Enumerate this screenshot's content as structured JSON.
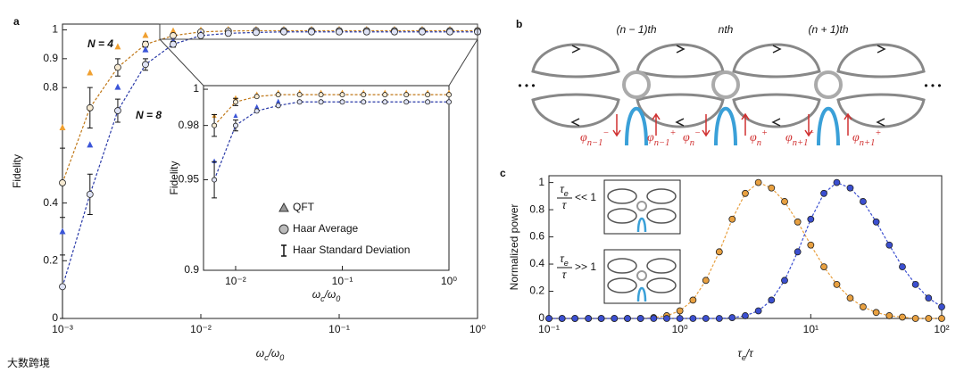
{
  "chart_data": [
    {
      "type": "line",
      "label": "a",
      "xscale": "log",
      "ylabel": "Fidelity",
      "xlabel": [
        "ω",
        {
          "sub": "c"
        },
        "/ω",
        {
          "sub": "0"
        }
      ],
      "xlim": [
        0.001,
        1
      ],
      "ylim": [
        0,
        1.02
      ],
      "xticks": [
        {
          "value": 0.001,
          "label": "10⁻³"
        },
        {
          "value": 0.01,
          "label": "10⁻²"
        },
        {
          "value": 0.1,
          "label": "10⁻¹"
        },
        {
          "value": 1,
          "label": "10⁰"
        }
      ],
      "yticks": [
        0,
        0.2,
        0.4,
        0.8,
        0.9,
        1
      ],
      "annotations": [
        {
          "text": "N = 4",
          "color": "#c8834e"
        },
        {
          "text": "N = 8",
          "color": "#2b2ba0"
        }
      ],
      "x": [
        0.001,
        0.00158,
        0.00251,
        0.00398,
        0.00631,
        0.01,
        0.0158,
        0.0251,
        0.0398,
        0.0631,
        0.1,
        0.158,
        0.251,
        0.398,
        0.631,
        1
      ],
      "series": [
        {
          "color": "#f0a030",
          "marker": "triangle",
          "values": [
            0.66,
            0.85,
            0.94,
            0.98,
            0.995,
            0.998,
            1,
            1,
            1,
            1,
            1,
            1,
            1,
            1,
            1,
            1
          ]
        },
        {
          "color": "#c07818",
          "marker": "circle",
          "marker_fill": "#f6ead2",
          "line": "dashed",
          "values": [
            0.47,
            0.73,
            0.87,
            0.95,
            0.98,
            0.993,
            0.996,
            0.997,
            0.997,
            0.997,
            0.997,
            0.997,
            0.997,
            0.997,
            0.997,
            0.997
          ],
          "errors": [
            0.12,
            0.07,
            0.03,
            0.01,
            0,
            0,
            0,
            0,
            0,
            0,
            0,
            0,
            0,
            0,
            0,
            0
          ]
        },
        {
          "color": "#3b55d8",
          "marker": "triangle",
          "values": [
            0.3,
            0.6,
            0.8,
            0.93,
            0.96,
            0.985,
            0.99,
            0.993,
            0.993,
            0.993,
            0.993,
            0.993,
            0.993,
            0.993,
            0.993,
            0.993
          ]
        },
        {
          "color": "#2a3aa8",
          "marker": "circle",
          "marker_fill": "#dfe3f5",
          "line": "dashed",
          "values": [
            0.11,
            0.43,
            0.72,
            0.88,
            0.95,
            0.98,
            0.988,
            0.991,
            0.993,
            0.993,
            0.993,
            0.993,
            0.993,
            0.993,
            0.993,
            0.993
          ],
          "errors": [
            0.11,
            0.07,
            0.04,
            0.02,
            0.01,
            0,
            0,
            0,
            0,
            0,
            0,
            0,
            0,
            0,
            0,
            0
          ]
        }
      ]
    },
    {
      "type": "line",
      "xscale": "log",
      "ylabel": "Fidelity",
      "xlabel": [
        "ω",
        {
          "sub": "c"
        },
        "/ω",
        {
          "sub": "0"
        }
      ],
      "xlim": [
        0.005,
        1
      ],
      "ylim": [
        0.9,
        1.002
      ],
      "xticks": [
        {
          "value": 0.01,
          "label": "10⁻²"
        },
        {
          "value": 0.1,
          "label": "10⁻¹"
        },
        {
          "value": 1,
          "label": "10⁰"
        }
      ],
      "yticks": [
        0.9,
        0.95,
        0.98,
        1
      ],
      "legend": [
        "QFT",
        "Haar Average",
        "Haar Standard Deviation"
      ],
      "x": [
        0.00631,
        0.01,
        0.0158,
        0.0251,
        0.0398,
        0.0631,
        0.1,
        0.158,
        0.251,
        0.398,
        0.631,
        1
      ],
      "series": [
        {
          "color": "#f0a030",
          "marker": "triangle",
          "values": [
            0.985,
            0.995,
            0.997,
            0.998,
            0.998,
            0.998,
            0.998,
            0.998,
            0.998,
            0.998,
            0.998,
            0.998
          ]
        },
        {
          "color": "#c07818",
          "marker": "circle",
          "marker_fill": "#f6ead2",
          "line": "dashed",
          "values": [
            0.98,
            0.993,
            0.996,
            0.997,
            0.997,
            0.997,
            0.997,
            0.997,
            0.997,
            0.997,
            0.997,
            0.997
          ],
          "errors": [
            0.006,
            0.002,
            0,
            0,
            0,
            0,
            0,
            0,
            0,
            0,
            0,
            0
          ]
        },
        {
          "color": "#3b55d8",
          "marker": "triangle",
          "values": [
            0.96,
            0.985,
            0.99,
            0.993,
            0.993,
            0.993,
            0.993,
            0.993,
            0.993,
            0.993,
            0.993,
            0.993
          ]
        },
        {
          "color": "#2a3aa8",
          "marker": "circle",
          "marker_fill": "#dfe3f5",
          "line": "dashed",
          "values": [
            0.95,
            0.98,
            0.988,
            0.991,
            0.993,
            0.993,
            0.993,
            0.993,
            0.993,
            0.993,
            0.993,
            0.993
          ],
          "errors": [
            0.01,
            0.003,
            0,
            0,
            0,
            0,
            0,
            0,
            0,
            0,
            0,
            0
          ]
        }
      ]
    },
    {
      "type": "line",
      "label": "c",
      "xscale": "log",
      "ylabel": "Normalized power",
      "xlabel": [
        "τ",
        {
          "sub": "e"
        },
        "/τ"
      ],
      "xlim": [
        0.1,
        100
      ],
      "ylim": [
        0,
        1.05
      ],
      "xticks": [
        {
          "value": 0.1,
          "label": "10⁻¹"
        },
        {
          "value": 1,
          "label": "10⁰"
        },
        {
          "value": 10,
          "label": "10¹"
        },
        {
          "value": 100,
          "label": "10²"
        }
      ],
      "yticks": [
        0,
        0.2,
        0.4,
        0.6,
        0.8,
        1
      ],
      "cases": [
        {
          "num": [
            "τ",
            {
              "sub": "e"
            }
          ],
          "den": "τ",
          "rel": "<< 1"
        },
        {
          "num": [
            "τ",
            {
              "sub": "e"
            }
          ],
          "den": "τ",
          "rel": ">> 1"
        }
      ],
      "x": [
        0.1,
        0.126,
        0.158,
        0.2,
        0.251,
        0.316,
        0.398,
        0.501,
        0.631,
        0.794,
        1,
        1.26,
        1.58,
        2,
        2.51,
        3.16,
        3.98,
        5.01,
        6.31,
        7.94,
        10,
        12.6,
        15.8,
        20,
        25.1,
        31.6,
        39.8,
        50.1,
        63.1,
        79.4,
        100
      ],
      "series": [
        {
          "color": "#e8a040",
          "marker": "circle",
          "line": "dashed",
          "values": [
            0,
            0,
            0,
            0,
            0,
            0,
            0,
            0,
            0.006,
            0.02,
            0.056,
            0.135,
            0.28,
            0.49,
            0.73,
            0.92,
            1,
            0.96,
            0.86,
            0.71,
            0.54,
            0.38,
            0.25,
            0.15,
            0.085,
            0.044,
            0.02,
            0.01,
            0,
            0,
            0
          ]
        },
        {
          "color": "#3b4fd0",
          "marker": "circle",
          "line": "dashed",
          "values": [
            0,
            0,
            0,
            0,
            0,
            0,
            0,
            0,
            0,
            0,
            0,
            0,
            0,
            0,
            0.006,
            0.02,
            0.056,
            0.135,
            0.28,
            0.49,
            0.73,
            0.92,
            1,
            0.96,
            0.86,
            0.71,
            0.54,
            0.38,
            0.25,
            0.15,
            0.085
          ]
        }
      ]
    }
  ],
  "diagram": {
    "label": "b",
    "cells": [
      "(n − 1)th",
      "nth",
      "(n + 1)th"
    ],
    "ellipsis": "• • •",
    "phases": [
      [
        "φ",
        {
          "sub": "n−1"
        },
        {
          "sup": "−"
        }
      ],
      [
        "φ",
        {
          "sub": "n−1"
        },
        {
          "sup": "+"
        }
      ],
      [
        "φ",
        {
          "sub": "n"
        },
        {
          "sup": "−"
        }
      ],
      [
        "φ",
        {
          "sub": "n"
        },
        {
          "sup": "+"
        }
      ],
      [
        "φ",
        {
          "sub": "n+1"
        },
        {
          "sup": "−"
        }
      ],
      [
        "φ",
        {
          "sub": "n+1"
        },
        {
          "sup": "+"
        }
      ]
    ]
  },
  "watermark": "大数跨境"
}
